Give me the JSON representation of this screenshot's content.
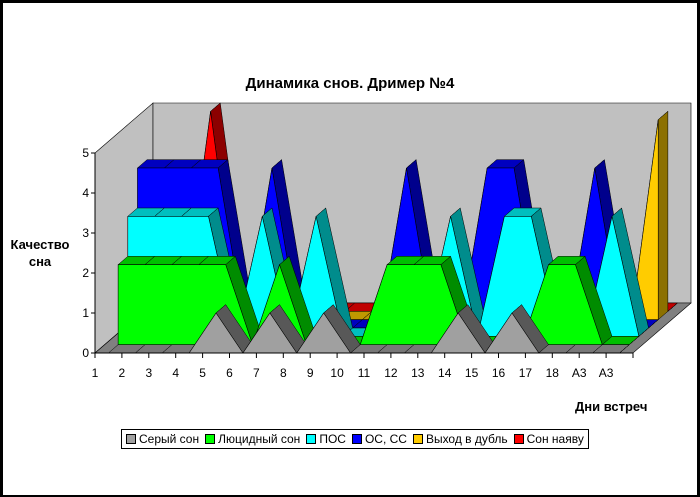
{
  "chart_data": {
    "type": "area",
    "title": "Динамика снов.  Дример №4",
    "ylabel_line1": "Качество",
    "ylabel_line2": "сна",
    "xlabel": "Дни встреч",
    "ylim": [
      0,
      5
    ],
    "yticks": [
      "0",
      "1",
      "2",
      "3",
      "4",
      "5"
    ],
    "categories": [
      "1",
      "2",
      "3",
      "4",
      "5",
      "6",
      "7",
      "8",
      "9",
      "10",
      "11",
      "12",
      "13",
      "14",
      "15",
      "16",
      "17",
      "18",
      "А3",
      "А3"
    ],
    "grid": false,
    "legend_position": "bottom",
    "series": [
      {
        "name": "Серый сон",
        "color": "#a0a0a0",
        "values": [
          0,
          0,
          0,
          0,
          1,
          0,
          1,
          0,
          1,
          0,
          0,
          0,
          0,
          1,
          0,
          1,
          0,
          0,
          0,
          0
        ]
      },
      {
        "name": "Люцидный сон",
        "color": "#00ff00",
        "values": [
          2,
          2,
          2,
          2,
          2,
          0,
          2,
          0,
          0,
          0,
          2,
          2,
          2,
          0,
          0,
          0,
          2,
          2,
          0,
          0
        ]
      },
      {
        "name": "ПОС",
        "color": "#00ffff",
        "values": [
          3,
          3,
          3,
          3,
          0,
          3,
          0,
          3,
          0,
          0,
          0,
          0,
          3,
          0,
          3,
          3,
          0,
          0,
          3,
          0
        ]
      },
      {
        "name": "ОС, СС",
        "color": "#0000ff",
        "values": [
          4,
          4,
          4,
          4,
          0,
          4,
          0,
          0,
          0,
          0,
          4,
          0,
          0,
          4,
          4,
          0,
          0,
          4,
          0,
          0
        ]
      },
      {
        "name": "Выход в дубль",
        "color": "#ffcc00",
        "values": [
          0,
          0,
          0,
          0,
          0,
          0,
          0,
          0,
          0,
          0,
          0,
          0,
          0,
          0,
          0,
          0,
          0,
          0,
          0,
          5
        ]
      },
      {
        "name": "Сон наяву",
        "color": "#ff0000",
        "values": [
          0,
          0,
          5,
          0,
          0,
          0,
          0,
          0,
          0,
          0,
          0,
          0,
          0,
          0,
          0,
          0,
          0,
          0,
          0,
          0
        ]
      }
    ]
  }
}
